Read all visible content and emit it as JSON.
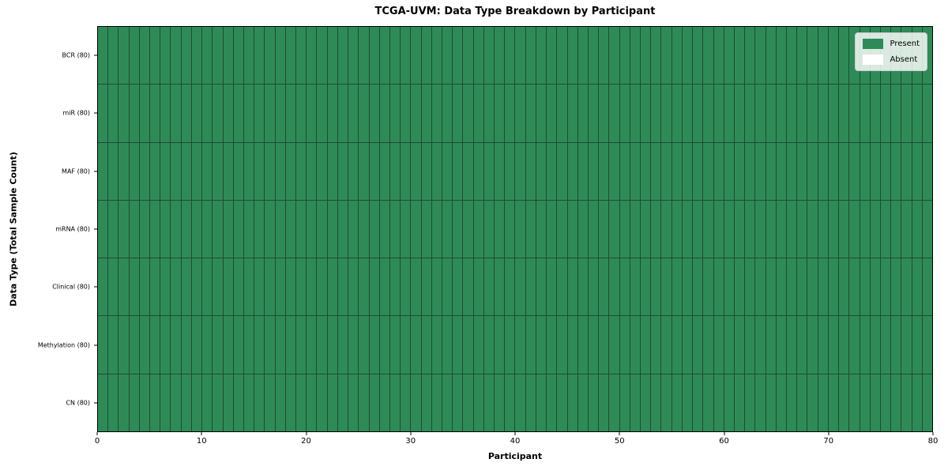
{
  "chart_data": {
    "type": "heatmap",
    "title": "TCGA-UVM: Data Type Breakdown by Participant",
    "xlabel": "Participant",
    "ylabel": "Data Type (Total Sample Count)",
    "xlim": [
      0,
      80
    ],
    "x_ticks": [
      0,
      10,
      20,
      30,
      40,
      50,
      60,
      70,
      80
    ],
    "n_participants": 80,
    "grid_on": true,
    "all_present": true,
    "rows": [
      {
        "label": "BCR (80)",
        "data_type": "BCR",
        "total_samples": 80,
        "present_count": 80
      },
      {
        "label": "miR (80)",
        "data_type": "miR",
        "total_samples": 80,
        "present_count": 80
      },
      {
        "label": "MAF (80)",
        "data_type": "MAF",
        "total_samples": 80,
        "present_count": 80
      },
      {
        "label": "mRNA (80)",
        "data_type": "mRNA",
        "total_samples": 80,
        "present_count": 80
      },
      {
        "label": "Clinical (80)",
        "data_type": "Clinical",
        "total_samples": 80,
        "present_count": 80
      },
      {
        "label": "Methylation (80)",
        "data_type": "Methylation",
        "total_samples": 80,
        "present_count": 80
      },
      {
        "label": "CN (80)",
        "data_type": "CN",
        "total_samples": 80,
        "present_count": 80
      }
    ],
    "legend": {
      "position": "upper right",
      "entries": [
        {
          "label": "Present",
          "color": "#2E8B57"
        },
        {
          "label": "Absent",
          "color": "#FFFFFF"
        }
      ]
    },
    "colors": {
      "present": "#2E8B57",
      "absent": "#FFFFFF",
      "mesh_line": "#204a34",
      "axis": "#000000"
    }
  }
}
